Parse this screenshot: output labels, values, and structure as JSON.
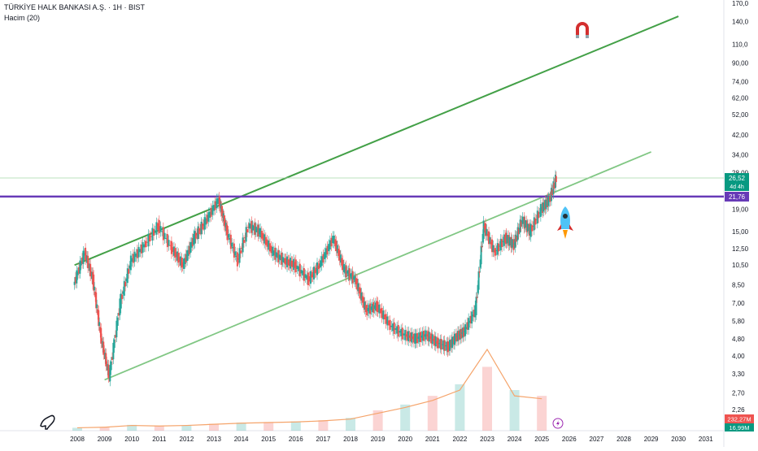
{
  "header": {
    "title": "TÜRKİYE HALK BANKASI A.Ş. · 1H · BIST",
    "volume_indicator": "Hacim (20)"
  },
  "colors": {
    "up": "#26a69a",
    "down": "#ef5350",
    "channel_line": "#43a047",
    "channel_line_light": "#81c784",
    "horizontal_line": "#673ab7",
    "volume_ma": "#f5a46b",
    "last_price_tag": "#089981",
    "volume_tag": "#ef5350",
    "volume_tag2": "#089981"
  },
  "icons": {
    "magnet": "magnet-icon",
    "rocket": "rocket-icon",
    "logo": "dino-logo-icon",
    "lightning": "lightning-icon"
  },
  "tags": {
    "last_price": "26,52",
    "countdown": "4d 4h",
    "level": "21,76",
    "volume_1": "232,27M",
    "volume_2": "16,99M"
  },
  "chart_data": {
    "type": "line",
    "yscale": "log",
    "y_tick_labels": [
      "170,0",
      "140,0",
      "110,0",
      "90,00",
      "74,00",
      "62,00",
      "52,00",
      "42,00",
      "34,00",
      "28,00",
      "19,00",
      "15,00",
      "12,50",
      "10,50",
      "8,50",
      "7,00",
      "5,80",
      "4,80",
      "4,00",
      "3,30",
      "2,70",
      "2,26"
    ],
    "y_ticks": [
      170,
      140,
      110,
      90,
      74,
      62,
      52,
      42,
      34,
      28,
      19,
      15,
      12.5,
      10.5,
      8.5,
      7,
      5.8,
      4.8,
      4,
      3.3,
      2.7,
      2.26
    ],
    "x_tick_labels": [
      "2008",
      "2009",
      "2010",
      "2011",
      "2012",
      "2013",
      "2014",
      "2015",
      "2016",
      "2017",
      "2018",
      "2019",
      "2020",
      "2021",
      "2022",
      "2023",
      "2024",
      "2025",
      "2026",
      "2027",
      "2028",
      "2029",
      "2030",
      "2031"
    ],
    "x_ticks": [
      2008,
      2009,
      2010,
      2011,
      2012,
      2013,
      2014,
      2015,
      2016,
      2017,
      2018,
      2019,
      2020,
      2021,
      2022,
      2023,
      2024,
      2025,
      2026,
      2027,
      2028,
      2029,
      2030,
      2031
    ],
    "price_path": {
      "x": [
        2007.9,
        2008.3,
        2008.6,
        2008.9,
        2009.2,
        2009.6,
        2010.0,
        2010.5,
        2011.0,
        2011.5,
        2011.9,
        2012.3,
        2012.7,
        2013.2,
        2013.5,
        2013.9,
        2014.3,
        2014.7,
        2015.2,
        2015.6,
        2016.0,
        2016.5,
        2016.9,
        2017.4,
        2017.8,
        2018.2,
        2018.6,
        2019.0,
        2019.5,
        2020.0,
        2020.4,
        2020.8,
        2021.2,
        2021.6,
        2021.9,
        2022.2,
        2022.6,
        2022.9,
        2023.3,
        2023.7,
        2024.0,
        2024.3,
        2024.6,
        2025.0,
        2025.3,
        2025.55
      ],
      "y": [
        8.5,
        12.0,
        9.0,
        4.8,
        3.2,
        7.0,
        11.0,
        13.0,
        16.0,
        12.5,
        10.5,
        14.0,
        16.5,
        21.0,
        15.0,
        11.0,
        16.0,
        15.0,
        12.0,
        11.0,
        10.5,
        9.0,
        10.5,
        14.0,
        10.0,
        9.0,
        6.5,
        6.8,
        5.5,
        5.0,
        4.8,
        5.0,
        4.6,
        4.4,
        4.9,
        5.2,
        6.5,
        16.0,
        12.0,
        14.0,
        13.0,
        17.0,
        15.0,
        19.0,
        21.0,
        26.52
      ]
    },
    "lines": [
      {
        "name": "",
        "x1": 2007.9,
        "y1": 10.5,
        "x2": 2030.0,
        "y2": 148
      },
      {
        "name": "",
        "x1": 2009.0,
        "y1": 3.1,
        "x2": 2029.0,
        "y2": 35
      },
      {
        "name": "",
        "level": 21.76
      }
    ],
    "volume": {
      "x": [
        2008,
        2009,
        2010,
        2011,
        2012,
        2013,
        2014,
        2015,
        2016,
        2017,
        2018,
        2019,
        2020,
        2021,
        2022,
        2023,
        2024,
        2025
      ],
      "values": [
        5,
        6,
        10,
        8,
        9,
        12,
        14,
        15,
        16,
        18,
        22,
        35,
        45,
        60,
        80,
        110,
        70,
        60
      ],
      "ma": [
        5,
        6,
        9,
        8,
        9,
        11,
        13,
        14,
        15,
        17,
        20,
        30,
        40,
        52,
        70,
        140,
        60,
        55
      ]
    },
    "last_price": 26.52,
    "level": 21.76,
    "title": "TÜRKİYE HALK BANKASI A.Ş. · 1H · BIST",
    "legend": "top-left"
  }
}
